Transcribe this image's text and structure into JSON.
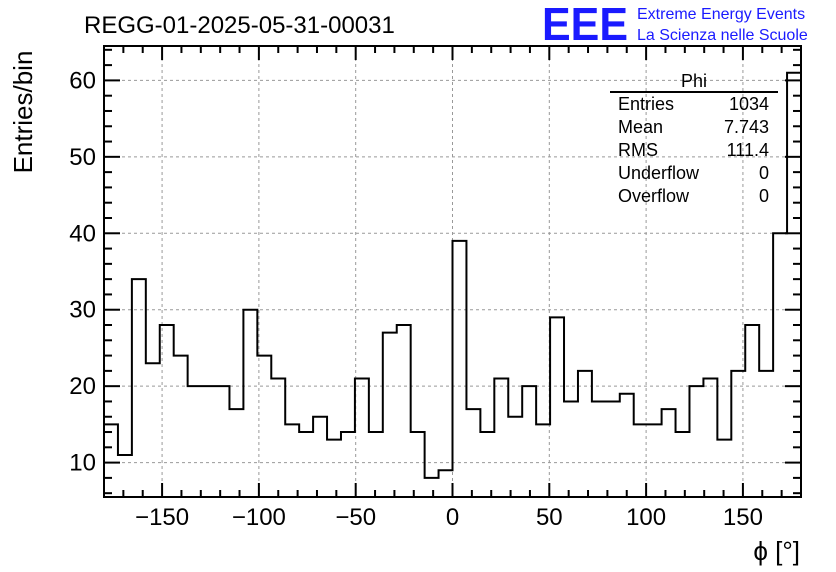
{
  "chart_data": {
    "type": "bar",
    "title": "REGG-01-2025-05-31-00031",
    "xlabel": "ϕ [°]",
    "ylabel": "Entries/bin",
    "xlim": [
      -180,
      180
    ],
    "ylim": [
      5.5,
      64.5
    ],
    "grid": true,
    "bin_width": 7.2,
    "x_ticks": [
      -150,
      -100,
      -50,
      0,
      50,
      100,
      150
    ],
    "x_tick_labels": [
      "−150",
      "−100",
      "−50",
      "0",
      "50",
      "100",
      "150"
    ],
    "y_ticks": [
      10,
      20,
      30,
      40,
      50,
      60
    ],
    "y_tick_labels": [
      "10",
      "20",
      "30",
      "40",
      "50",
      "60"
    ],
    "values": [
      15,
      11,
      34,
      23,
      28,
      24,
      20,
      20,
      20,
      17,
      30,
      24,
      21,
      15,
      14,
      16,
      13,
      14,
      21,
      14,
      27,
      28,
      14,
      8,
      9,
      39,
      17,
      14,
      21,
      16,
      20,
      15,
      29,
      18,
      22,
      18,
      18,
      19,
      15,
      15,
      17,
      14,
      20,
      21,
      13,
      22,
      28,
      22,
      40,
      61
    ],
    "stats_box": {
      "title": "Phi",
      "rows": [
        {
          "label": "Entries",
          "value": "1034"
        },
        {
          "label": "Mean",
          "value": "7.743"
        },
        {
          "label": "RMS",
          "value": "111.4"
        },
        {
          "label": "Underflow",
          "value": "0"
        },
        {
          "label": "Overflow",
          "value": "0"
        }
      ]
    }
  },
  "branding": {
    "logo_text": "EEE",
    "line1": "Extreme Energy Events",
    "line2": "La Scienza nelle Scuole",
    "color": "#1a1aff"
  }
}
